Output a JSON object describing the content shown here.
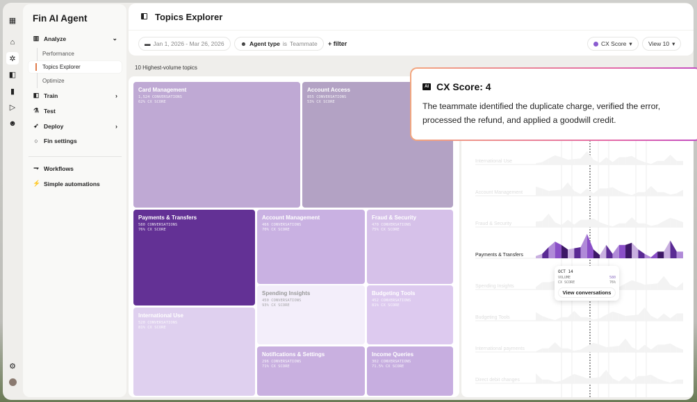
{
  "sidebar": {
    "title": "Fin AI Agent",
    "analyze": "Analyze",
    "subitems": [
      "Performance",
      "Topics Explorer",
      "Optimize"
    ],
    "train": "Train",
    "test": "Test",
    "deploy": "Deploy",
    "fin_settings": "Fin settings",
    "workflows": "Workflows",
    "simple_automations": "Simple automations"
  },
  "header": {
    "title": "Topics Explorer",
    "date_range": "Jan 1, 2026 - Mar 26, 2026",
    "agent_type_label": "Agent type",
    "agent_type_op": "is",
    "agent_type_value": "Teammate",
    "add_filter": "+ filter",
    "metric": "CX Score",
    "view": "View 10"
  },
  "section_label": "10 Highest-volume topics",
  "topics": [
    {
      "name": "Card Management",
      "conversations": "1,524 CONVERSATIONS",
      "score": "62% CX SCORE",
      "color": "#bfa9d4"
    },
    {
      "name": "Account Access",
      "conversations": "855 CONVERSATIONS",
      "score": "53% CX SCORE",
      "color": "#b3a2c4"
    },
    {
      "name": "Payments & Transfers",
      "conversations": "580 CONVERSATIONS",
      "score": "76% CX SCORE",
      "color": "#633195"
    },
    {
      "name": "International Use",
      "conversations": "520 CONVERSATIONS",
      "score": "81% CX SCORE",
      "color": "#dfd0ef"
    },
    {
      "name": "Account Management",
      "conversations": "466 CONVERSATIONS",
      "score": "70% CX SCORE",
      "color": "#c9b1e2"
    },
    {
      "name": "Fraud & Security",
      "conversations": "470 CONVERSATIONS",
      "score": "75% CX SCORE",
      "color": "#d6c1e9"
    },
    {
      "name": "Spending Insights",
      "conversations": "450 CONVERSATIONS",
      "score": "93% CX SCORE",
      "color": "#f3eefa"
    },
    {
      "name": "Budgeting Tools",
      "conversations": "452 CONVERSATIONS",
      "score": "81% CX SCORE",
      "color": "#ddcaef"
    },
    {
      "name": "Notifications & Settings",
      "conversations": "296 CONVERSATIONS",
      "score": "71% CX SCORE",
      "color": "#c9b0e0"
    },
    {
      "name": "Income Queries",
      "conversations": "302 CONVERSATIONS",
      "score": "71.5% CX SCORE",
      "color": "#c7aee0"
    }
  ],
  "trend_rows": [
    "International Use",
    "Account Management",
    "Fraud & Security",
    "Payments & Transfers",
    "Spending Insights",
    "Budgeting Tools",
    "International payments",
    "Direct debit changes"
  ],
  "ai_card": {
    "badge": "AI",
    "title": "CX Score: 4",
    "body": "The teammate identified the duplicate charge, verified the error, processed the refund, and applied a goodwill credit."
  },
  "tooltip": {
    "date": "OCT 14",
    "volume_label": "VOLUME",
    "volume": "580",
    "score_label": "CX SCORE",
    "score": "76%",
    "button": "View conversations"
  },
  "colors": {
    "accent": "#8a5cd0",
    "dark": "#3d1766"
  }
}
